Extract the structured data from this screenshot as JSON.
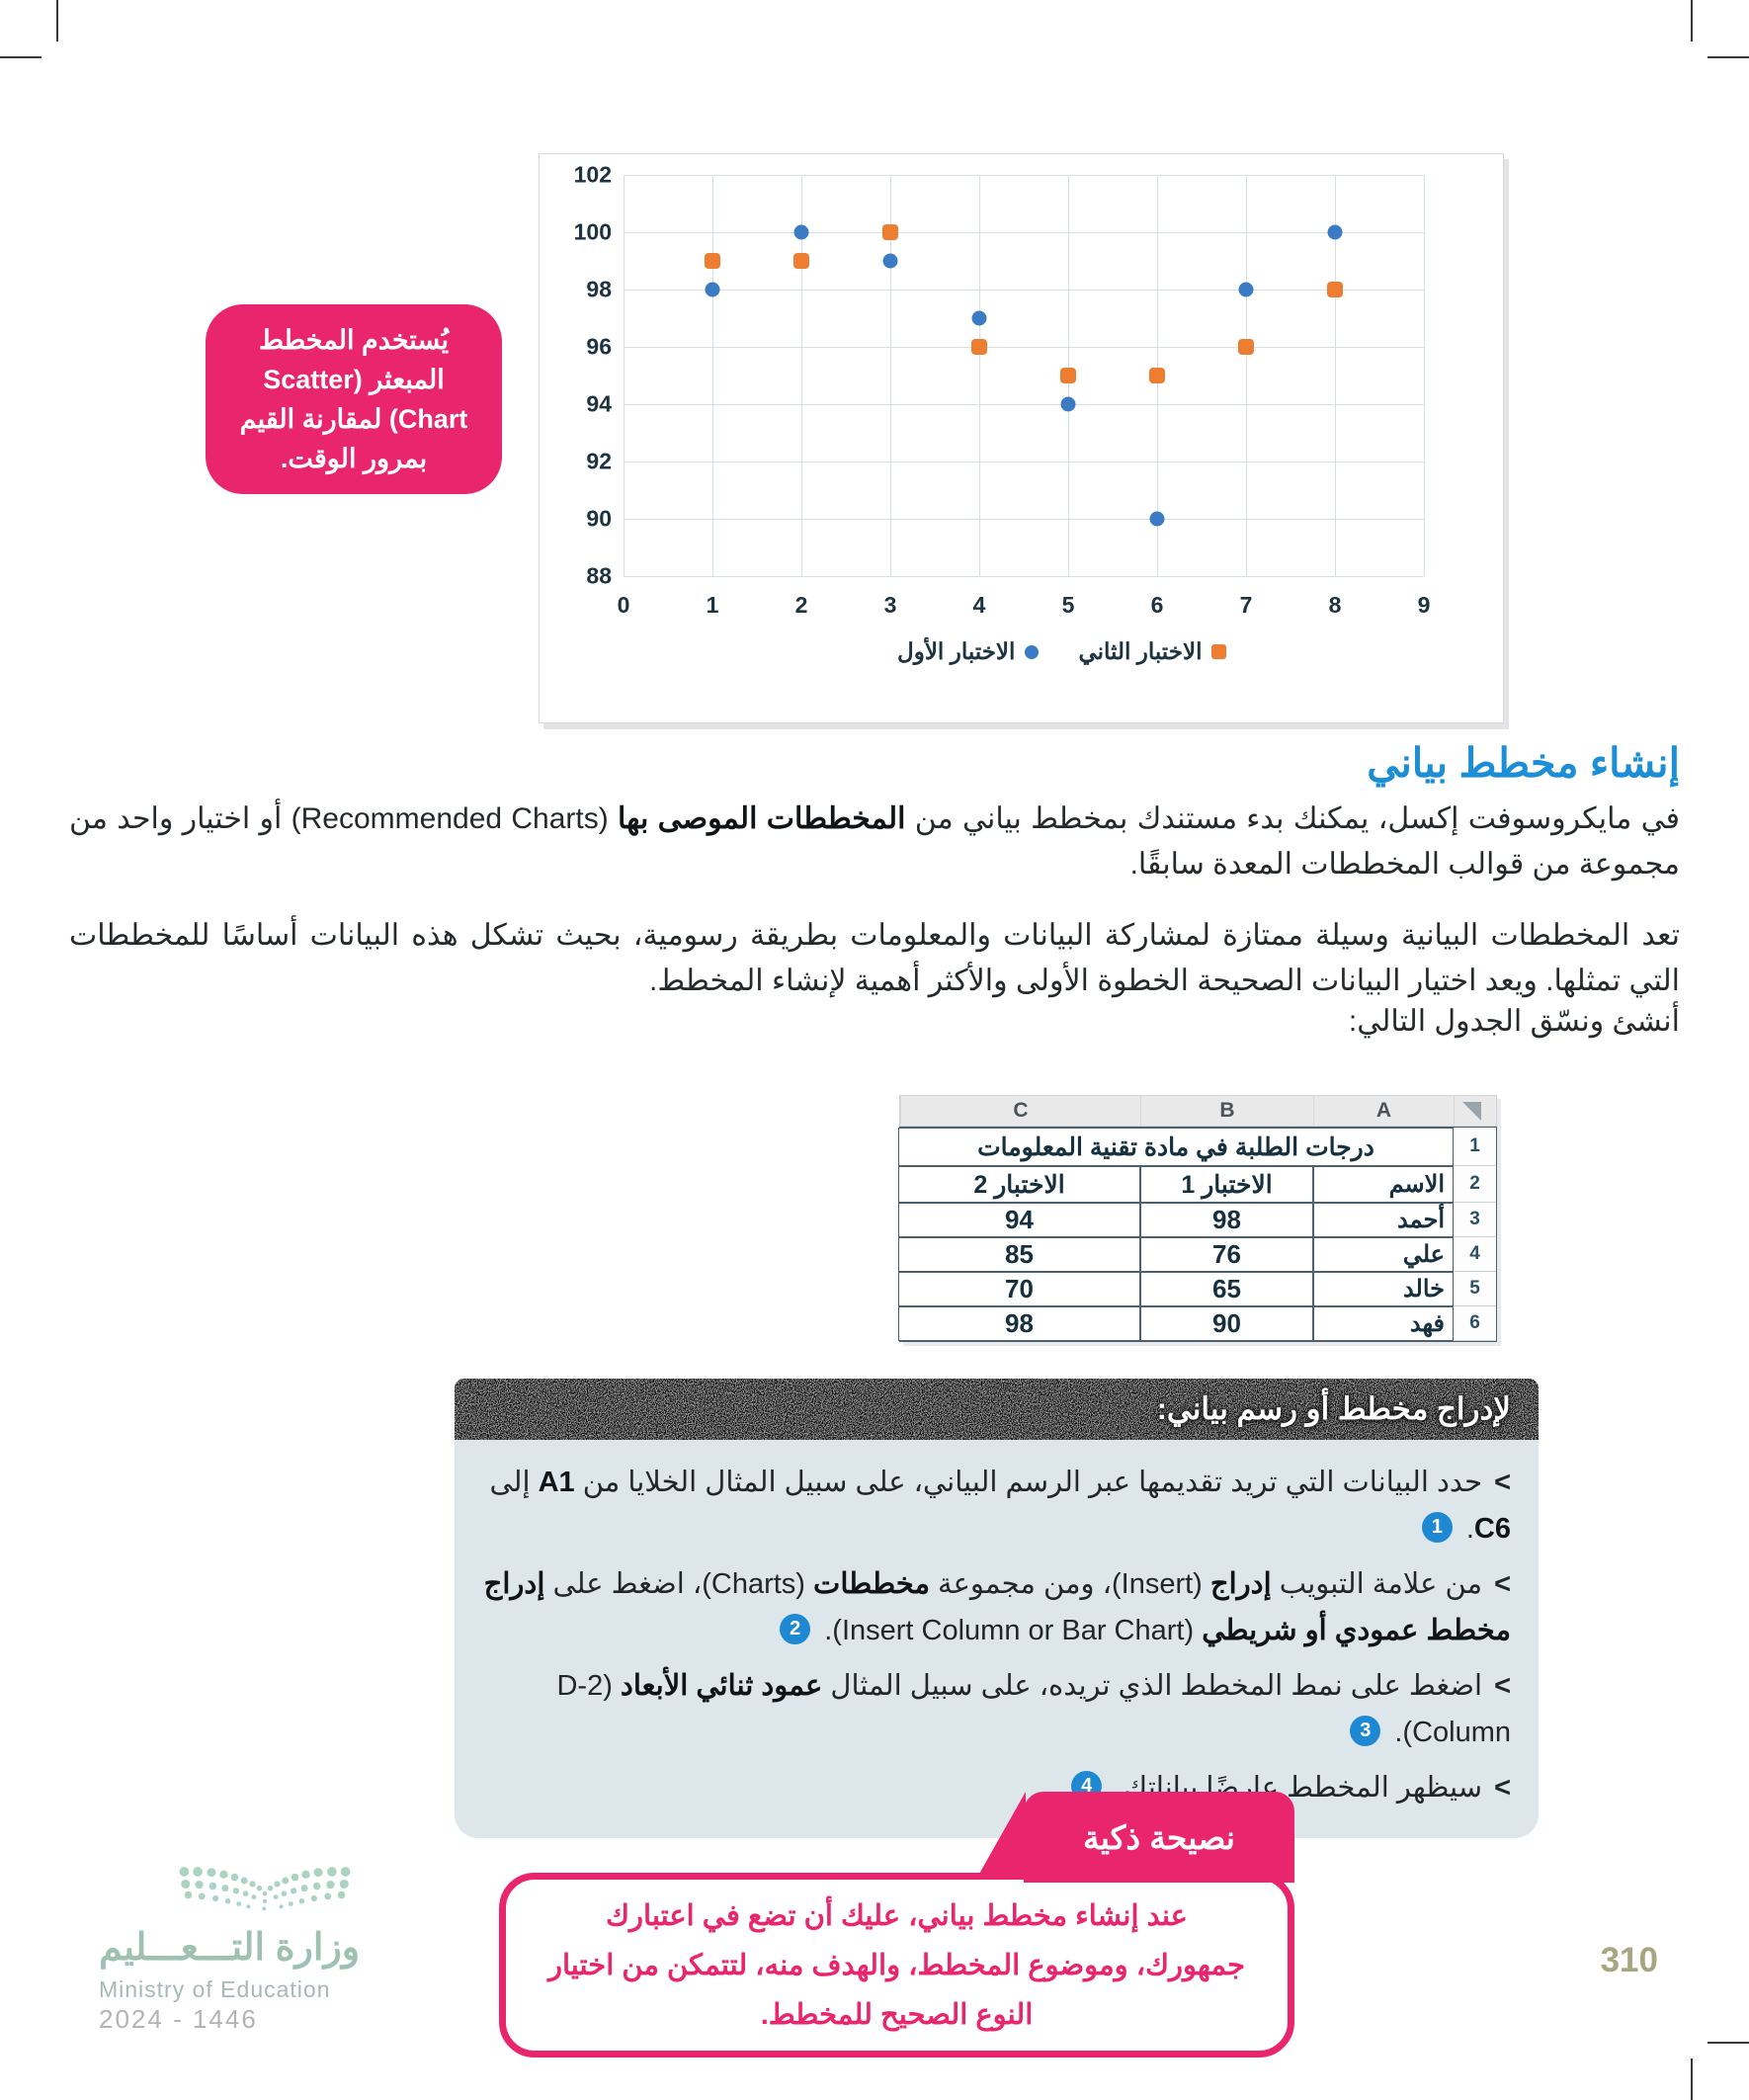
{
  "page": {
    "number": "310",
    "background": "#ffffff"
  },
  "callout": {
    "text": "يُستخدم المخطط المبعثر (Scatter Chart) لمقارنة القيم بمرور الوقت.",
    "bg": "#e8256d"
  },
  "chart_data": {
    "type": "scatter",
    "title": "",
    "xlabel": "",
    "ylabel": "",
    "xlim": [
      0,
      9
    ],
    "ylim": [
      88,
      102
    ],
    "x_ticks": [
      0,
      1,
      2,
      3,
      4,
      5,
      6,
      7,
      8,
      9
    ],
    "y_ticks": [
      102,
      100,
      98,
      96,
      94,
      92,
      90,
      88
    ],
    "grid": true,
    "legend_position": "bottom",
    "series": [
      {
        "name": "الاختبار الأول",
        "color": "#3a7bc4",
        "marker": "circle",
        "points": [
          [
            1,
            98
          ],
          [
            2,
            100
          ],
          [
            3,
            99
          ],
          [
            4,
            97
          ],
          [
            5,
            94
          ],
          [
            6,
            90
          ],
          [
            7,
            98
          ],
          [
            8,
            100
          ]
        ]
      },
      {
        "name": "الاختبار الثاني",
        "color": "#ed7d31",
        "marker": "square",
        "points": [
          [
            1,
            99
          ],
          [
            2,
            99
          ],
          [
            3,
            100
          ],
          [
            4,
            96
          ],
          [
            5,
            95
          ],
          [
            6,
            95
          ],
          [
            7,
            96
          ],
          [
            8,
            98
          ]
        ]
      }
    ]
  },
  "section": {
    "heading": "إنشاء مخطط بياني",
    "heading_color": "#1b8ed6",
    "para1": [
      {
        "t": "في مايكروسوفت إكسل، يمكنك بدء مستندك بمخطط بياني من "
      },
      {
        "t": "المخططات الموصى بها",
        "b": true
      },
      {
        "t": " (Recommended Charts) أو اختيار واحد من مجموعة من قوالب المخططات المعدة سابقًا."
      }
    ],
    "para2": [
      {
        "t": "تعد المخططات البيانية وسيلة ممتازة لمشاركة البيانات والمعلومات بطريقة رسومية، بحيث تشكل هذه البيانات أساسًا للمخططات التي تمثلها. ويعد اختيار البيانات الصحيحة الخطوة الأولى والأكثر أهمية لإنشاء المخطط."
      }
    ],
    "table_intro": "أنشئ ونسّق الجدول التالي:"
  },
  "table": {
    "col_letters": [
      "A",
      "B",
      "C"
    ],
    "title": "درجات الطلبة في مادة تقنية المعلومات",
    "headers": {
      "name": "الاسم",
      "test1": "الاختبار 1",
      "test2": "الاختبار 2"
    },
    "row_numbers": [
      "1",
      "2",
      "3",
      "4",
      "5",
      "6"
    ],
    "rows": [
      {
        "name": "أحمد",
        "test1": "98",
        "test2": "94"
      },
      {
        "name": "علي",
        "test1": "76",
        "test2": "85"
      },
      {
        "name": "خالد",
        "test1": "65",
        "test2": "70"
      },
      {
        "name": "فهد",
        "test1": "90",
        "test2": "98"
      }
    ]
  },
  "howto": {
    "title": "لإدراج مخطط أو رسم بياني:",
    "bullet_char": "<",
    "badge_color": "#1f88d3",
    "bullets": [
      {
        "segments": [
          {
            "t": "حدد البيانات التي تريد تقديمها عبر الرسم البياني، على سبيل المثال الخلايا من "
          },
          {
            "t": "A1",
            "b": true
          },
          {
            "t": " إلى "
          },
          {
            "t": "C6",
            "b": true
          },
          {
            "t": ". "
          },
          {
            "badge": "1"
          }
        ]
      },
      {
        "segments": [
          {
            "t": "من علامة التبويب "
          },
          {
            "t": "إدراج",
            "b": true
          },
          {
            "t": " (Insert)، ومن مجموعة "
          },
          {
            "t": "مخططات",
            "b": true
          },
          {
            "t": " (Charts)، اضغط على "
          },
          {
            "t": "إدراج مخطط عمودي أو شريطي",
            "b": true
          },
          {
            "t": " (Insert Column or Bar Chart). "
          },
          {
            "badge": "2"
          }
        ]
      },
      {
        "segments": [
          {
            "t": "اضغط على نمط المخطط الذي تريده، على سبيل المثال "
          },
          {
            "t": "عمود ثنائي الأبعاد",
            "b": true
          },
          {
            "t": " (2-D Column). "
          },
          {
            "badge": "3"
          }
        ]
      },
      {
        "segments": [
          {
            "t": "سيظهر المخطط عارضًا بياناتك. "
          },
          {
            "badge": "4"
          }
        ]
      }
    ]
  },
  "tip": {
    "tab_label": "نصيحة ذكية",
    "text": "عند إنشاء مخطط بياني، عليك أن تضع في اعتبارك جمهورك، وموضوع المخطط، والهدف منه، لتتمكن من اختيار النوع الصحيح للمخطط.",
    "color": "#e8256d"
  },
  "footer": {
    "ministry_ar": "وزارة التـــعـــليم",
    "ministry_en": "Ministry of Education",
    "years": "2024 - 1446"
  }
}
